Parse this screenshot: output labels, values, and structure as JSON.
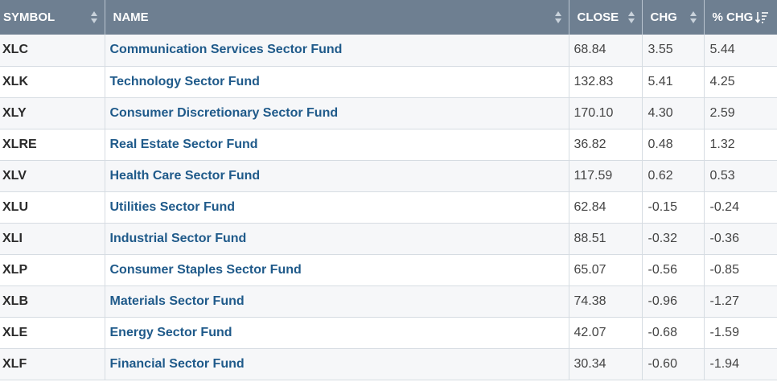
{
  "headers": {
    "symbol": "SYMBOL",
    "name": "NAME",
    "close": "CLOSE",
    "chg": "CHG",
    "pct_chg": "% CHG"
  },
  "icons": {
    "sort": "sort-both-icon",
    "sort_active": "sort-descending-icon"
  },
  "rows": [
    {
      "symbol": "XLC",
      "name": "Communication Services Sector Fund",
      "close": "68.84",
      "chg": "3.55",
      "pct": "5.44"
    },
    {
      "symbol": "XLK",
      "name": "Technology Sector Fund",
      "close": "132.83",
      "chg": "5.41",
      "pct": "4.25"
    },
    {
      "symbol": "XLY",
      "name": "Consumer Discretionary Sector Fund",
      "close": "170.10",
      "chg": "4.30",
      "pct": "2.59"
    },
    {
      "symbol": "XLRE",
      "name": "Real Estate Sector Fund",
      "close": "36.82",
      "chg": "0.48",
      "pct": "1.32"
    },
    {
      "symbol": "XLV",
      "name": "Health Care Sector Fund",
      "close": "117.59",
      "chg": "0.62",
      "pct": "0.53"
    },
    {
      "symbol": "XLU",
      "name": "Utilities Sector Fund",
      "close": "62.84",
      "chg": "-0.15",
      "pct": "-0.24"
    },
    {
      "symbol": "XLI",
      "name": "Industrial Sector Fund",
      "close": "88.51",
      "chg": "-0.32",
      "pct": "-0.36"
    },
    {
      "symbol": "XLP",
      "name": "Consumer Staples Sector Fund",
      "close": "65.07",
      "chg": "-0.56",
      "pct": "-0.85"
    },
    {
      "symbol": "XLB",
      "name": "Materials Sector Fund",
      "close": "74.38",
      "chg": "-0.96",
      "pct": "-1.27"
    },
    {
      "symbol": "XLE",
      "name": "Energy Sector Fund",
      "close": "42.07",
      "chg": "-0.68",
      "pct": "-1.59"
    },
    {
      "symbol": "XLF",
      "name": "Financial Sector Fund",
      "close": "30.34",
      "chg": "-0.60",
      "pct": "-1.94"
    }
  ]
}
